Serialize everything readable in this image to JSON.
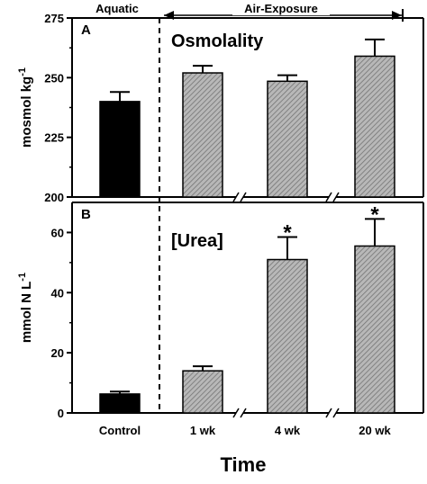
{
  "chart_data": {
    "type": "bar",
    "categories": [
      "Control",
      "1 wk",
      "4 wk",
      "20 wk"
    ],
    "xlabel": "Time",
    "groups": {
      "aquatic": "Aquatic",
      "air_exposure": "Air-Exposure"
    },
    "colors": {
      "control": "#000000",
      "air_exposure": "#b8b8b8",
      "hatch": "#707070"
    },
    "panels": [
      {
        "letter": "A",
        "title": "Osmolality",
        "ylabel": "mosmol kg-1",
        "ylim": [
          200,
          275
        ],
        "yticks": [
          200,
          225,
          250,
          275
        ],
        "values": [
          240,
          252,
          248.5,
          259
        ],
        "errors": [
          4,
          3,
          2.5,
          7
        ],
        "significant": [
          "",
          "",
          "",
          ""
        ]
      },
      {
        "letter": "B",
        "title": "[Urea]",
        "ylabel": "mmol N L-1",
        "ylim": [
          0,
          70
        ],
        "yticks": [
          0,
          20,
          40,
          60
        ],
        "values": [
          6.3,
          14,
          51,
          55.5
        ],
        "errors": [
          0.8,
          1.5,
          7.5,
          9
        ],
        "significant": [
          "",
          "",
          "*",
          "*"
        ]
      }
    ]
  }
}
